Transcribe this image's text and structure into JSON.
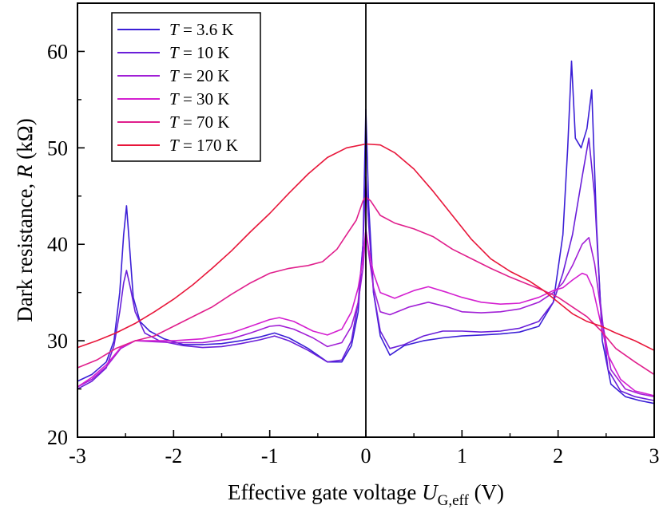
{
  "chart_data": {
    "type": "line",
    "xlabel": "Effective gate voltage U_G,eff (V)",
    "xlabel_parts": {
      "prefix": "Effective gate voltage ",
      "var": "U",
      "sub": "G,eff",
      "unit": " (V)"
    },
    "ylabel": "Dark resistance, R (kΩ)",
    "ylabel_parts": {
      "prefix": "Dark resistance, ",
      "var": "R",
      "unit": " (kΩ)"
    },
    "xlim": [
      -3,
      3
    ],
    "ylim": [
      20,
      65
    ],
    "xticks": [
      -3,
      -2,
      -1,
      0,
      1,
      2,
      3
    ],
    "yticks": [
      20,
      30,
      40,
      50,
      60
    ],
    "vertical_line_x": 0,
    "legend_position": "top-left",
    "grid": false,
    "series": [
      {
        "name": "T = 3.6 K",
        "var": "T",
        "value": "= 3.6 K",
        "color": "#3b1fd6",
        "points": [
          [
            -3.0,
            25.8
          ],
          [
            -2.85,
            26.5
          ],
          [
            -2.7,
            27.8
          ],
          [
            -2.62,
            30.0
          ],
          [
            -2.56,
            35.0
          ],
          [
            -2.52,
            41.0
          ],
          [
            -2.49,
            44.0
          ],
          [
            -2.46,
            40.0
          ],
          [
            -2.42,
            34.5
          ],
          [
            -2.35,
            32.0
          ],
          [
            -2.25,
            31.0
          ],
          [
            -2.1,
            30.2
          ],
          [
            -1.9,
            29.6
          ],
          [
            -1.7,
            29.6
          ],
          [
            -1.5,
            29.7
          ],
          [
            -1.3,
            30.0
          ],
          [
            -1.1,
            30.4
          ],
          [
            -0.95,
            30.8
          ],
          [
            -0.8,
            30.3
          ],
          [
            -0.6,
            29.2
          ],
          [
            -0.4,
            27.8
          ],
          [
            -0.25,
            27.8
          ],
          [
            -0.15,
            29.5
          ],
          [
            -0.08,
            33.0
          ],
          [
            -0.03,
            40.0
          ],
          [
            0.0,
            54.0
          ],
          [
            0.03,
            44.0
          ],
          [
            0.08,
            35.0
          ],
          [
            0.15,
            30.5
          ],
          [
            0.25,
            28.5
          ],
          [
            0.4,
            29.5
          ],
          [
            0.6,
            30.0
          ],
          [
            0.8,
            30.3
          ],
          [
            1.0,
            30.5
          ],
          [
            1.2,
            30.6
          ],
          [
            1.4,
            30.7
          ],
          [
            1.6,
            30.9
          ],
          [
            1.8,
            31.5
          ],
          [
            1.95,
            34.0
          ],
          [
            2.05,
            41.0
          ],
          [
            2.1,
            50.0
          ],
          [
            2.14,
            59.0
          ],
          [
            2.18,
            51.0
          ],
          [
            2.24,
            50.0
          ],
          [
            2.3,
            52.0
          ],
          [
            2.35,
            56.0
          ],
          [
            2.4,
            42.0
          ],
          [
            2.46,
            30.0
          ],
          [
            2.55,
            25.5
          ],
          [
            2.7,
            24.2
          ],
          [
            2.85,
            23.8
          ],
          [
            3.0,
            23.5
          ]
        ]
      },
      {
        "name": "T = 10 K",
        "var": "T",
        "value": "= 10 K",
        "color": "#6a1fd9",
        "points": [
          [
            -3.0,
            25.0
          ],
          [
            -2.85,
            25.8
          ],
          [
            -2.7,
            27.2
          ],
          [
            -2.62,
            29.5
          ],
          [
            -2.56,
            33.0
          ],
          [
            -2.52,
            36.0
          ],
          [
            -2.49,
            37.3
          ],
          [
            -2.45,
            35.5
          ],
          [
            -2.4,
            33.0
          ],
          [
            -2.3,
            30.8
          ],
          [
            -2.15,
            30.0
          ],
          [
            -1.9,
            29.5
          ],
          [
            -1.7,
            29.3
          ],
          [
            -1.5,
            29.4
          ],
          [
            -1.3,
            29.7
          ],
          [
            -1.1,
            30.1
          ],
          [
            -0.95,
            30.5
          ],
          [
            -0.8,
            30.0
          ],
          [
            -0.6,
            29.0
          ],
          [
            -0.4,
            27.8
          ],
          [
            -0.25,
            28.0
          ],
          [
            -0.15,
            30.0
          ],
          [
            -0.08,
            34.0
          ],
          [
            -0.03,
            40.0
          ],
          [
            0.0,
            47.0
          ],
          [
            0.03,
            42.0
          ],
          [
            0.08,
            35.0
          ],
          [
            0.15,
            31.0
          ],
          [
            0.25,
            29.2
          ],
          [
            0.4,
            29.6
          ],
          [
            0.6,
            30.5
          ],
          [
            0.8,
            31.0
          ],
          [
            1.0,
            31.0
          ],
          [
            1.2,
            30.9
          ],
          [
            1.4,
            31.0
          ],
          [
            1.6,
            31.3
          ],
          [
            1.8,
            32.0
          ],
          [
            1.95,
            34.0
          ],
          [
            2.05,
            37.0
          ],
          [
            2.15,
            41.0
          ],
          [
            2.25,
            47.0
          ],
          [
            2.32,
            51.0
          ],
          [
            2.38,
            45.0
          ],
          [
            2.44,
            34.0
          ],
          [
            2.52,
            27.0
          ],
          [
            2.65,
            24.8
          ],
          [
            2.8,
            24.2
          ],
          [
            3.0,
            23.8
          ]
        ]
      },
      {
        "name": "T = 20 K",
        "var": "T",
        "value": "= 20 K",
        "color": "#a11fd6",
        "points": [
          [
            -3.0,
            25.2
          ],
          [
            -2.85,
            26.0
          ],
          [
            -2.7,
            27.3
          ],
          [
            -2.55,
            29.2
          ],
          [
            -2.4,
            30.0
          ],
          [
            -2.2,
            29.9
          ],
          [
            -2.0,
            29.8
          ],
          [
            -1.7,
            29.8
          ],
          [
            -1.4,
            30.2
          ],
          [
            -1.2,
            30.8
          ],
          [
            -1.0,
            31.5
          ],
          [
            -0.9,
            31.6
          ],
          [
            -0.75,
            31.2
          ],
          [
            -0.55,
            30.3
          ],
          [
            -0.4,
            29.4
          ],
          [
            -0.25,
            29.8
          ],
          [
            -0.15,
            31.5
          ],
          [
            -0.08,
            34.0
          ],
          [
            -0.03,
            37.5
          ],
          [
            0.0,
            41.5
          ],
          [
            0.03,
            39.0
          ],
          [
            0.08,
            35.5
          ],
          [
            0.15,
            33.0
          ],
          [
            0.25,
            32.7
          ],
          [
            0.45,
            33.5
          ],
          [
            0.65,
            34.0
          ],
          [
            0.85,
            33.5
          ],
          [
            1.0,
            33.0
          ],
          [
            1.2,
            32.9
          ],
          [
            1.4,
            33.0
          ],
          [
            1.6,
            33.3
          ],
          [
            1.8,
            34.0
          ],
          [
            1.95,
            35.0
          ],
          [
            2.05,
            36.0
          ],
          [
            2.15,
            37.8
          ],
          [
            2.25,
            40.0
          ],
          [
            2.32,
            40.7
          ],
          [
            2.38,
            38.0
          ],
          [
            2.46,
            32.0
          ],
          [
            2.55,
            27.0
          ],
          [
            2.7,
            25.0
          ],
          [
            2.85,
            24.5
          ],
          [
            3.0,
            24.2
          ]
        ]
      },
      {
        "name": "T = 30 K",
        "var": "T",
        "value": "= 30 K",
        "color": "#d41fd0",
        "points": [
          [
            -3.0,
            25.2
          ],
          [
            -2.85,
            26.2
          ],
          [
            -2.7,
            27.5
          ],
          [
            -2.55,
            29.3
          ],
          [
            -2.4,
            30.0
          ],
          [
            -2.2,
            30.0
          ],
          [
            -2.0,
            30.0
          ],
          [
            -1.7,
            30.2
          ],
          [
            -1.4,
            30.8
          ],
          [
            -1.2,
            31.5
          ],
          [
            -1.0,
            32.2
          ],
          [
            -0.9,
            32.4
          ],
          [
            -0.75,
            32.0
          ],
          [
            -0.55,
            31.0
          ],
          [
            -0.4,
            30.6
          ],
          [
            -0.25,
            31.2
          ],
          [
            -0.15,
            33.0
          ],
          [
            -0.08,
            35.5
          ],
          [
            -0.03,
            38.5
          ],
          [
            0.0,
            41.5
          ],
          [
            0.03,
            39.5
          ],
          [
            0.08,
            37.0
          ],
          [
            0.15,
            35.0
          ],
          [
            0.3,
            34.4
          ],
          [
            0.5,
            35.2
          ],
          [
            0.65,
            35.6
          ],
          [
            0.85,
            35.0
          ],
          [
            1.0,
            34.5
          ],
          [
            1.2,
            34.0
          ],
          [
            1.4,
            33.8
          ],
          [
            1.6,
            33.9
          ],
          [
            1.8,
            34.5
          ],
          [
            1.95,
            35.2
          ],
          [
            2.05,
            35.5
          ],
          [
            2.15,
            36.3
          ],
          [
            2.25,
            37.0
          ],
          [
            2.3,
            36.8
          ],
          [
            2.36,
            35.5
          ],
          [
            2.44,
            32.0
          ],
          [
            2.52,
            28.5
          ],
          [
            2.65,
            26.0
          ],
          [
            2.8,
            24.8
          ],
          [
            3.0,
            24.3
          ]
        ]
      },
      {
        "name": "T = 70 K",
        "var": "T",
        "value": "= 70 K",
        "color": "#e01f8c",
        "points": [
          [
            -3.0,
            27.2
          ],
          [
            -2.8,
            28.0
          ],
          [
            -2.6,
            29.2
          ],
          [
            -2.4,
            30.0
          ],
          [
            -2.2,
            30.5
          ],
          [
            -2.0,
            31.5
          ],
          [
            -1.8,
            32.5
          ],
          [
            -1.6,
            33.5
          ],
          [
            -1.4,
            34.8
          ],
          [
            -1.2,
            36.0
          ],
          [
            -1.0,
            37.0
          ],
          [
            -0.8,
            37.5
          ],
          [
            -0.6,
            37.8
          ],
          [
            -0.45,
            38.2
          ],
          [
            -0.3,
            39.5
          ],
          [
            -0.2,
            41.0
          ],
          [
            -0.1,
            42.5
          ],
          [
            -0.03,
            44.5
          ],
          [
            0.0,
            44.9
          ],
          [
            0.05,
            44.5
          ],
          [
            0.15,
            43.0
          ],
          [
            0.3,
            42.2
          ],
          [
            0.5,
            41.6
          ],
          [
            0.7,
            40.8
          ],
          [
            0.9,
            39.5
          ],
          [
            1.1,
            38.5
          ],
          [
            1.3,
            37.5
          ],
          [
            1.5,
            36.6
          ],
          [
            1.7,
            35.8
          ],
          [
            1.85,
            35.2
          ],
          [
            2.0,
            34.5
          ],
          [
            2.15,
            33.5
          ],
          [
            2.3,
            32.5
          ],
          [
            2.45,
            31.0
          ],
          [
            2.6,
            29.2
          ],
          [
            2.8,
            27.8
          ],
          [
            3.0,
            26.5
          ]
        ]
      },
      {
        "name": "T = 170 K",
        "var": "T",
        "value": "= 170 K",
        "color": "#e8163a",
        "points": [
          [
            -3.0,
            29.3
          ],
          [
            -2.8,
            30.0
          ],
          [
            -2.6,
            30.8
          ],
          [
            -2.4,
            31.8
          ],
          [
            -2.2,
            33.0
          ],
          [
            -2.0,
            34.3
          ],
          [
            -1.8,
            35.8
          ],
          [
            -1.6,
            37.5
          ],
          [
            -1.4,
            39.3
          ],
          [
            -1.2,
            41.3
          ],
          [
            -1.0,
            43.2
          ],
          [
            -0.8,
            45.3
          ],
          [
            -0.6,
            47.3
          ],
          [
            -0.4,
            49.0
          ],
          [
            -0.2,
            50.0
          ],
          [
            0.0,
            50.4
          ],
          [
            0.15,
            50.3
          ],
          [
            0.3,
            49.5
          ],
          [
            0.5,
            47.8
          ],
          [
            0.7,
            45.5
          ],
          [
            0.9,
            43.0
          ],
          [
            1.1,
            40.5
          ],
          [
            1.3,
            38.5
          ],
          [
            1.5,
            37.2
          ],
          [
            1.7,
            36.2
          ],
          [
            1.85,
            35.2
          ],
          [
            2.0,
            34.0
          ],
          [
            2.15,
            32.8
          ],
          [
            2.3,
            32.0
          ],
          [
            2.45,
            31.5
          ],
          [
            2.6,
            30.8
          ],
          [
            2.8,
            30.0
          ],
          [
            3.0,
            29.0
          ]
        ]
      }
    ]
  }
}
